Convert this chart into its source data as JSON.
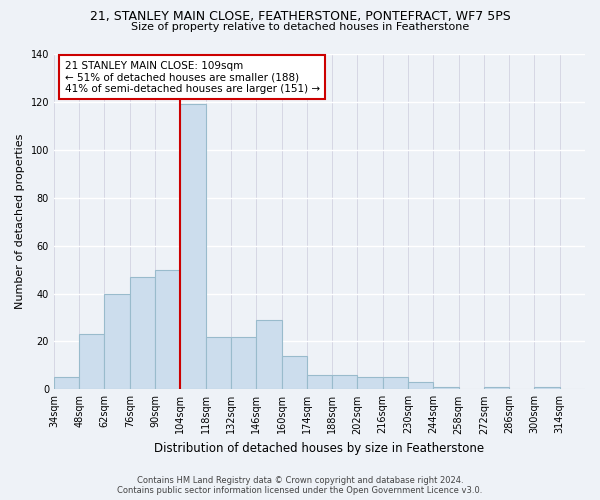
{
  "title": "21, STANLEY MAIN CLOSE, FEATHERSTONE, PONTEFRACT, WF7 5PS",
  "subtitle": "Size of property relative to detached houses in Featherstone",
  "xlabel": "Distribution of detached houses by size in Featherstone",
  "ylabel": "Number of detached properties",
  "bar_color": "#ccdded",
  "bar_edge_color": "#99bbcc",
  "reference_line_x": 104,
  "bin_edges": [
    34,
    48,
    62,
    76,
    90,
    104,
    118,
    132,
    146,
    160,
    174,
    188,
    202,
    216,
    230,
    244,
    258,
    272,
    286,
    300,
    314
  ],
  "bar_heights": [
    5,
    23,
    40,
    47,
    50,
    119,
    22,
    22,
    29,
    14,
    6,
    6,
    5,
    5,
    3,
    1,
    0,
    1,
    0,
    1,
    0
  ],
  "ylim": [
    0,
    140
  ],
  "yticks": [
    0,
    20,
    40,
    60,
    80,
    100,
    120,
    140
  ],
  "annotation_text": "21 STANLEY MAIN CLOSE: 109sqm\n← 51% of detached houses are smaller (188)\n41% of semi-detached houses are larger (151) →",
  "annotation_box_color": "#ffffff",
  "annotation_box_edge_color": "#cc0000",
  "footnote": "Contains HM Land Registry data © Crown copyright and database right 2024.\nContains public sector information licensed under the Open Government Licence v3.0.",
  "background_color": "#eef2f7"
}
